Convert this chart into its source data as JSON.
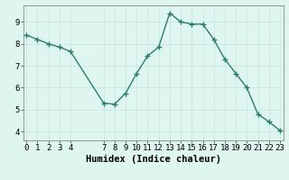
{
  "x": [
    0,
    1,
    2,
    3,
    4,
    7,
    8,
    9,
    10,
    11,
    12,
    13,
    14,
    15,
    16,
    17,
    18,
    19,
    20,
    21,
    22,
    23
  ],
  "y": [
    8.4,
    8.2,
    8.0,
    7.85,
    7.65,
    5.3,
    5.25,
    5.75,
    6.65,
    7.45,
    7.85,
    9.4,
    9.0,
    8.9,
    8.9,
    8.2,
    7.3,
    6.65,
    6.0,
    4.8,
    4.45,
    4.05
  ],
  "line_color": "#2d7d6d",
  "bg_color": "#dff5f0",
  "grid_major_color": "#c8e8e0",
  "grid_minor_color": "#e8f8f4",
  "xlabel": "Humidex (Indice chaleur)",
  "xticks": [
    0,
    1,
    2,
    3,
    4,
    7,
    8,
    9,
    10,
    11,
    12,
    13,
    14,
    15,
    16,
    17,
    18,
    19,
    20,
    21,
    22,
    23
  ],
  "yticks": [
    4,
    5,
    6,
    7,
    8,
    9
  ],
  "ylim": [
    3.6,
    9.75
  ],
  "xlim": [
    -0.3,
    23.3
  ],
  "marker": "+",
  "markersize": 4,
  "markeredgewidth": 1.0,
  "linewidth": 1.0,
  "xlabel_fontsize": 7.5,
  "tick_fontsize": 6.5
}
